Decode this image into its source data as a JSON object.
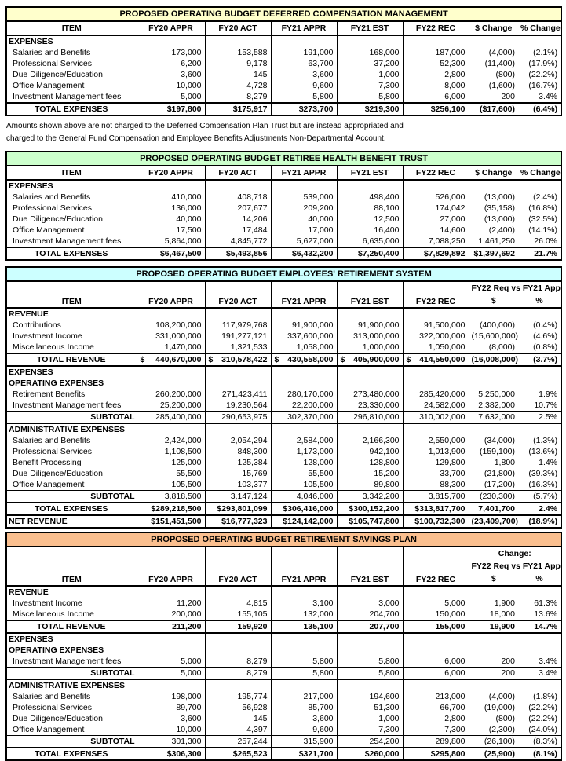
{
  "notes": {
    "line1": "Amounts shown above are not charged to the Deferred Compensation Plan Trust but are instead appropriated and",
    "line2": "charged to the General Fund Compensation and Employee Benefits Adjustments Non-Departmental Account."
  },
  "colors": {
    "deferred_comp_header": "#FFFFCC",
    "retiree_health_header": "#CCFFCC",
    "retirement_system_header": "#CCFFFF",
    "savings_plan_header": "#FABF8F",
    "border": "#000000"
  },
  "tables": [
    {
      "name": "deferred-compensation-management",
      "title": "PROPOSED OPERATING BUDGET DEFERRED COMPENSATION MANAGEMENT",
      "title_bg": "#FFFFCC",
      "columns": [
        "ITEM",
        "FY20 APPR",
        "FY20 ACT",
        "FY21 APPR",
        "FY21 EST",
        "FY22 REC",
        "$ Change",
        "% Change"
      ],
      "change_lines": [],
      "rows": [
        {
          "type": "section",
          "label": "EXPENSES",
          "values": [
            "",
            "",
            "",
            "",
            "",
            "",
            ""
          ]
        },
        {
          "type": "data",
          "label": "Salaries and Benefits",
          "values": [
            "173,000",
            "153,588",
            "191,000",
            "168,000",
            "187,000",
            "(4,000)",
            "(2.1%)"
          ]
        },
        {
          "type": "data",
          "label": "Professional Services",
          "values": [
            "6,200",
            "9,178",
            "63,700",
            "37,200",
            "52,300",
            "(11,400)",
            "(17.9%)"
          ]
        },
        {
          "type": "data",
          "label": "Due Diligence/Education",
          "values": [
            "3,600",
            "145",
            "3,600",
            "1,000",
            "2,800",
            "(800)",
            "(22.2%)"
          ]
        },
        {
          "type": "data",
          "label": "Office Management",
          "values": [
            "10,000",
            "4,728",
            "9,600",
            "7,300",
            "8,000",
            "(1,600)",
            "(16.7%)"
          ]
        },
        {
          "type": "data",
          "label": "Investment Management fees",
          "values": [
            "5,000",
            "8,279",
            "5,800",
            "5,800",
            "6,000",
            "200",
            "3.4%"
          ]
        },
        {
          "type": "total",
          "label": "TOTAL EXPENSES",
          "values": [
            "$197,800",
            "$175,917",
            "$273,700",
            "$219,300",
            "$256,100",
            "($17,600)",
            "(6.4%)"
          ]
        }
      ]
    },
    {
      "name": "retiree-health-benefit-trust",
      "title": "PROPOSED OPERATING BUDGET RETIREE HEALTH BENEFIT TRUST",
      "title_bg": "#CCFFCC",
      "columns": [
        "ITEM",
        "FY20 APPR",
        "FY20 ACT",
        "FY21 APPR",
        "FY21 EST",
        "FY22 REC",
        "$ Change",
        "% Change"
      ],
      "change_lines": [],
      "rows": [
        {
          "type": "section",
          "label": "EXPENSES",
          "values": [
            "",
            "",
            "",
            "",
            "",
            "",
            ""
          ]
        },
        {
          "type": "data",
          "label": "Salaries and Benefits",
          "values": [
            "410,000",
            "408,718",
            "539,000",
            "498,400",
            "526,000",
            "(13,000)",
            "(2.4%)"
          ]
        },
        {
          "type": "data",
          "label": "Professional Services",
          "values": [
            "136,000",
            "207,677",
            "209,200",
            "88,100",
            "174,042",
            "(35,158)",
            "(16.8%)"
          ]
        },
        {
          "type": "data",
          "label": "Due Diligence/Education",
          "values": [
            "40,000",
            "14,206",
            "40,000",
            "12,500",
            "27,000",
            "(13,000)",
            "(32.5%)"
          ]
        },
        {
          "type": "data",
          "label": "Office Management",
          "values": [
            "17,500",
            "17,484",
            "17,000",
            "16,400",
            "14,600",
            "(2,400)",
            "(14.1%)"
          ]
        },
        {
          "type": "data",
          "label": "Investment Management fees",
          "values": [
            "5,864,000",
            "4,845,772",
            "5,627,000",
            "6,635,000",
            "7,088,250",
            "1,461,250",
            "26.0%"
          ]
        },
        {
          "type": "total",
          "label": "TOTAL EXPENSES",
          "values": [
            "$6,467,500",
            "$5,493,856",
            "$6,432,200",
            "$7,250,400",
            "$7,829,892",
            "$1,397,692",
            "21.7%"
          ]
        }
      ]
    },
    {
      "name": "employees-retirement-system",
      "title": "PROPOSED OPERATING BUDGET EMPLOYEES' RETIREMENT SYSTEM",
      "title_bg": "#CCFFFF",
      "columns": [
        "ITEM",
        "FY20 APPR",
        "FY20 ACT",
        "FY21 APPR",
        "FY21 EST",
        "FY22 REC",
        "$",
        "%"
      ],
      "change_lines": [
        "FY22 Req vs FY21 Appr"
      ],
      "rows": [
        {
          "type": "section",
          "label": "REVENUE",
          "values": [
            "",
            "",
            "",
            "",
            "",
            "",
            ""
          ]
        },
        {
          "type": "data",
          "label": "Contributions",
          "values": [
            "108,200,000",
            "117,979,768",
            "91,900,000",
            "91,900,000",
            "91,500,000",
            "(400,000)",
            "(0.4%)"
          ]
        },
        {
          "type": "data",
          "label": "Investment Income",
          "values": [
            "331,000,000",
            "191,277,121",
            "337,600,000",
            "313,000,000",
            "322,000,000",
            "(15,600,000)",
            "(4.6%)"
          ]
        },
        {
          "type": "data",
          "label": "Miscellaneous Income",
          "values": [
            "1,470,000",
            "1,321,533",
            "1,058,000",
            "1,000,000",
            "1,050,000",
            "(8,000)",
            "(0.8%)"
          ]
        },
        {
          "type": "totalacct",
          "label": "TOTAL REVENUE",
          "values": [
            "440,670,000",
            "310,578,422",
            "430,558,000",
            "405,900,000",
            "414,550,000",
            "(16,008,000)",
            "(3.7%)"
          ]
        },
        {
          "type": "section",
          "label": "EXPENSES",
          "values": [
            "",
            "",
            "",
            "",
            "",
            "",
            ""
          ]
        },
        {
          "type": "section",
          "label": "OPERATING EXPENSES",
          "values": [
            "",
            "",
            "",
            "",
            "",
            "",
            ""
          ]
        },
        {
          "type": "data",
          "label": "Retirement Benefits",
          "values": [
            "260,200,000",
            "271,423,411",
            "280,170,000",
            "273,480,000",
            "285,420,000",
            "5,250,000",
            "1.9%"
          ]
        },
        {
          "type": "data",
          "label": "Investment Management fees",
          "values": [
            "25,200,000",
            "19,230,564",
            "22,200,000",
            "23,330,000",
            "24,582,000",
            "2,382,000",
            "10.7%"
          ]
        },
        {
          "type": "subtotalend",
          "label": "SUBTOTAL",
          "values": [
            "285,400,000",
            "290,653,975",
            "302,370,000",
            "296,810,000",
            "310,002,000",
            "7,632,000",
            "2.5%"
          ]
        },
        {
          "type": "section",
          "label": "ADMINISTRATIVE EXPENSES",
          "values": [
            "",
            "",
            "",
            "",
            "",
            "",
            ""
          ]
        },
        {
          "type": "data",
          "label": "Salaries and Benefits",
          "values": [
            "2,424,000",
            "2,054,294",
            "2,584,000",
            "2,166,300",
            "2,550,000",
            "(34,000)",
            "(1.3%)"
          ]
        },
        {
          "type": "data",
          "label": "Professional Services",
          "values": [
            "1,108,500",
            "848,300",
            "1,173,000",
            "942,100",
            "1,013,900",
            "(159,100)",
            "(13.6%)"
          ]
        },
        {
          "type": "data",
          "label": "Benefit Processing",
          "values": [
            "125,000",
            "125,384",
            "128,000",
            "128,800",
            "129,800",
            "1,800",
            "1.4%"
          ]
        },
        {
          "type": "data",
          "label": "Due Diligence/Education",
          "values": [
            "55,500",
            "15,769",
            "55,500",
            "15,200",
            "33,700",
            "(21,800)",
            "(39.3%)"
          ]
        },
        {
          "type": "data",
          "label": "Office Management",
          "values": [
            "105,500",
            "103,377",
            "105,500",
            "89,800",
            "88,300",
            "(17,200)",
            "(16.3%)"
          ]
        },
        {
          "type": "subtotal",
          "label": "SUBTOTAL",
          "values": [
            "3,818,500",
            "3,147,124",
            "4,046,000",
            "3,342,200",
            "3,815,700",
            "(230,300)",
            "(5.7%)"
          ]
        },
        {
          "type": "total",
          "label": "TOTAL EXPENSES",
          "values": [
            "$289,218,500",
            "$293,801,099",
            "$306,416,000",
            "$300,152,200",
            "$313,817,700",
            "7,401,700",
            "2.4%"
          ]
        },
        {
          "type": "net",
          "label": "NET REVENUE",
          "values": [
            "$151,451,500",
            "$16,777,323",
            "$124,142,000",
            "$105,747,800",
            "$100,732,300",
            "(23,409,700)",
            "(18.9%)"
          ]
        }
      ]
    },
    {
      "name": "retirement-savings-plan",
      "title": "PROPOSED OPERATING BUDGET RETIREMENT SAVINGS PLAN",
      "title_bg": "#FABF8F",
      "columns": [
        "ITEM",
        "FY20 APPR",
        "FY20 ACT",
        "FY21 APPR",
        "FY21 EST",
        "FY22 REC",
        "$",
        "%"
      ],
      "change_lines": [
        "Change:",
        "FY22 Req vs FY21 Appr"
      ],
      "rows": [
        {
          "type": "section",
          "label": "REVENUE",
          "values": [
            "",
            "",
            "",
            "",
            "",
            "",
            ""
          ]
        },
        {
          "type": "data",
          "label": "Investment Income",
          "values": [
            "11,200",
            "4,815",
            "3,100",
            "3,000",
            "5,000",
            "1,900",
            "61.3%"
          ]
        },
        {
          "type": "data",
          "label": "Miscellaneous Income",
          "values": [
            "200,000",
            "155,105",
            "132,000",
            "204,700",
            "150,000",
            "18,000",
            "13.6%"
          ]
        },
        {
          "type": "total",
          "label": "TOTAL REVENUE",
          "values": [
            "211,200",
            "159,920",
            "135,100",
            "207,700",
            "155,000",
            "19,900",
            "14.7%"
          ]
        },
        {
          "type": "section",
          "label": "EXPENSES",
          "values": [
            "",
            "",
            "",
            "",
            "",
            "",
            ""
          ]
        },
        {
          "type": "section",
          "label": "OPERATING EXPENSES",
          "values": [
            "",
            "",
            "",
            "",
            "",
            "",
            ""
          ]
        },
        {
          "type": "data",
          "label": "Investment Management fees",
          "values": [
            "5,000",
            "8,279",
            "5,800",
            "5,800",
            "6,000",
            "200",
            "3.4%"
          ]
        },
        {
          "type": "subtotalend",
          "label": "SUBTOTAL",
          "values": [
            "5,000",
            "8,279",
            "5,800",
            "5,800",
            "6,000",
            "200",
            "3.4%"
          ]
        },
        {
          "type": "section",
          "label": "ADMINISTRATIVE EXPENSES",
          "values": [
            "",
            "",
            "",
            "",
            "",
            "",
            ""
          ]
        },
        {
          "type": "data",
          "label": "Salaries and Benefits",
          "values": [
            "198,000",
            "195,774",
            "217,000",
            "194,600",
            "213,000",
            "(4,000)",
            "(1.8%)"
          ]
        },
        {
          "type": "data",
          "label": "Professional Services",
          "values": [
            "89,700",
            "56,928",
            "85,700",
            "51,300",
            "66,700",
            "(19,000)",
            "(22.2%)"
          ]
        },
        {
          "type": "data",
          "label": "Due Diligence/Education",
          "values": [
            "3,600",
            "145",
            "3,600",
            "1,000",
            "2,800",
            "(800)",
            "(22.2%)"
          ]
        },
        {
          "type": "data",
          "label": "Office Management",
          "values": [
            "10,000",
            "4,397",
            "9,600",
            "7,300",
            "7,300",
            "(2,300)",
            "(24.0%)"
          ]
        },
        {
          "type": "subtotal",
          "label": "SUBTOTAL",
          "values": [
            "301,300",
            "257,244",
            "315,900",
            "254,200",
            "289,800",
            "(26,100)",
            "(8.3%)"
          ]
        },
        {
          "type": "total",
          "label": "TOTAL EXPENSES",
          "values": [
            "$306,300",
            "$265,523",
            "$321,700",
            "$260,000",
            "$295,800",
            "(25,900)",
            "(8.1%)"
          ]
        }
      ]
    }
  ]
}
